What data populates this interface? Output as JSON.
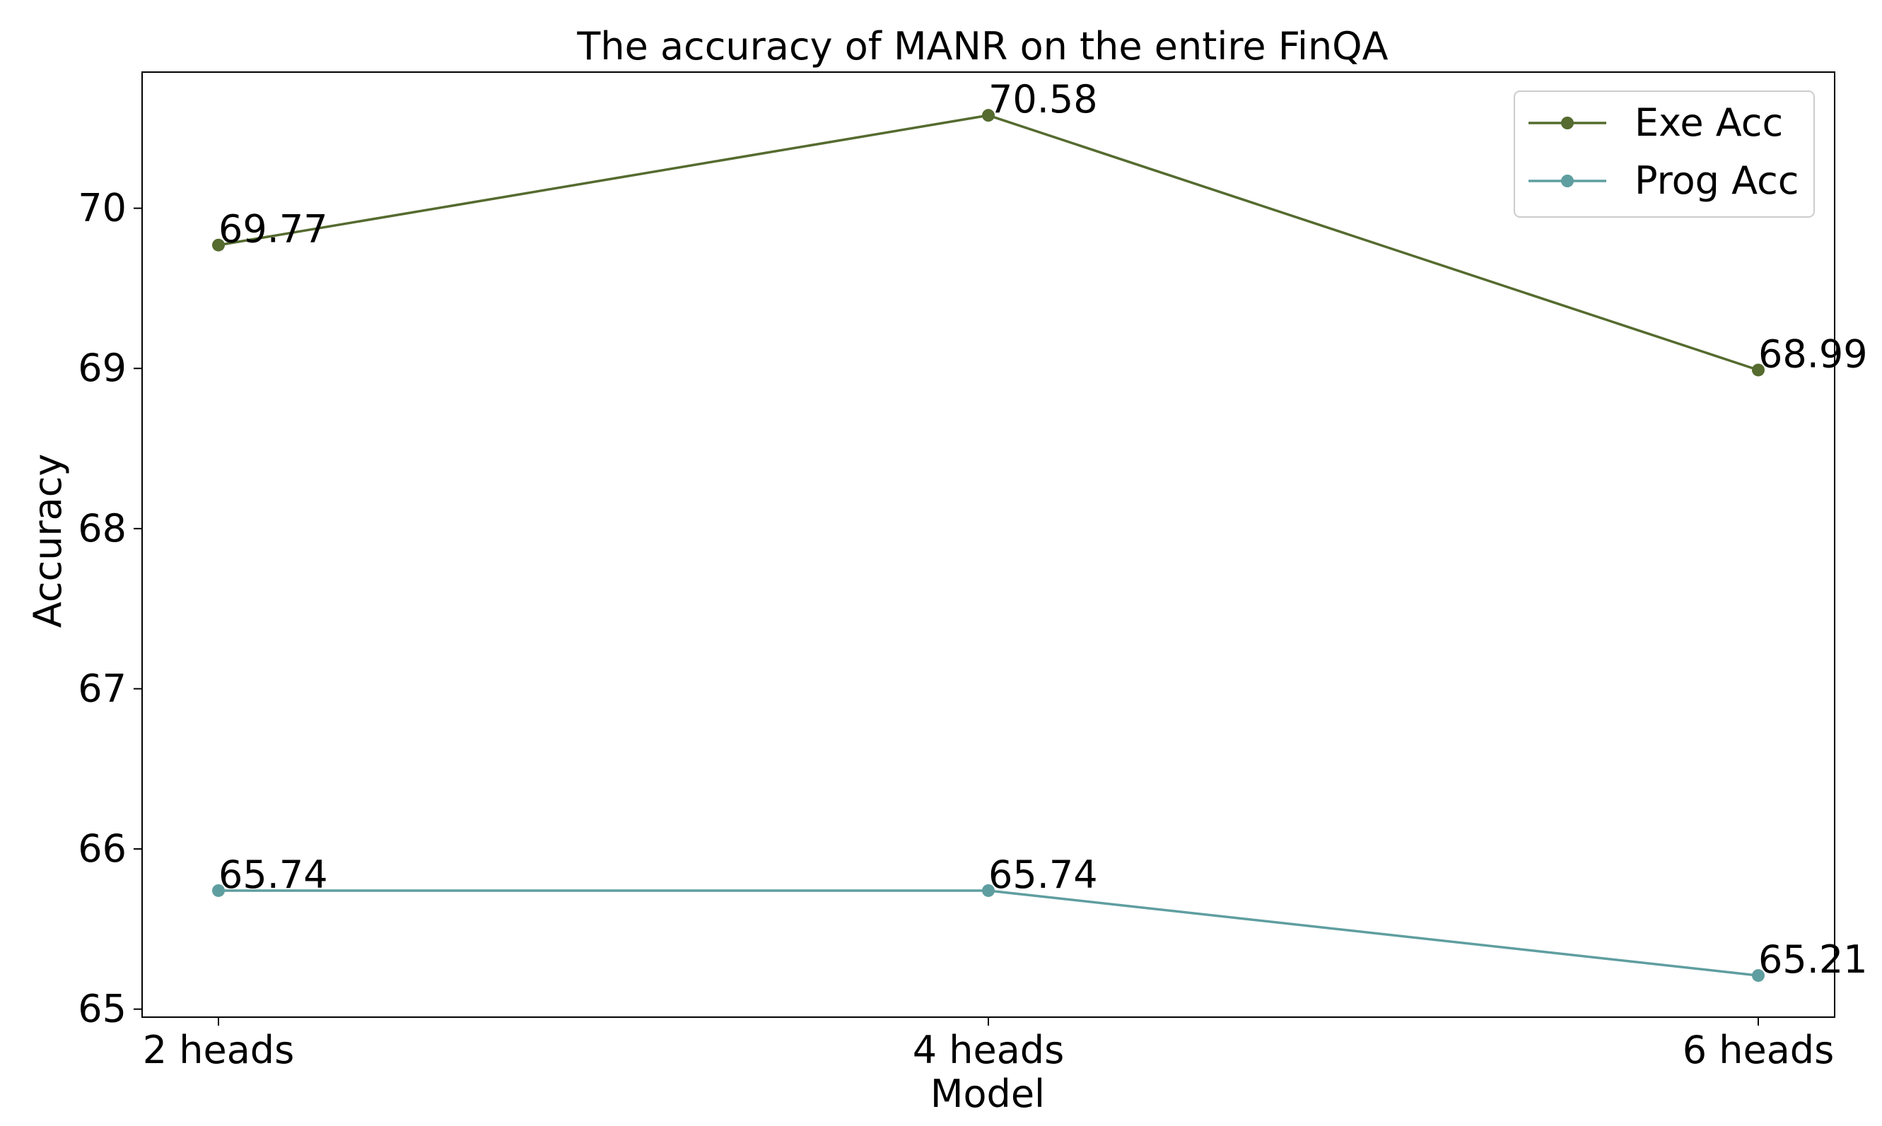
{
  "chart_data": {
    "type": "line",
    "title": "The accuracy of MANR on the entire FinQA",
    "xlabel": "Model",
    "ylabel": "Accuracy",
    "categories": [
      "2 heads",
      "4 heads",
      "6 heads"
    ],
    "ylim": [
      64.95,
      70.85
    ],
    "yticks": [
      "65",
      "66",
      "67",
      "68",
      "69",
      "70"
    ],
    "grid": false,
    "legend_position": "top-right",
    "series": [
      {
        "name": "Exe Acc",
        "color": "#556b2f",
        "values": [
          69.77,
          70.58,
          68.99
        ],
        "labels": [
          "69.77",
          "70.58",
          "68.99"
        ]
      },
      {
        "name": "Prog Acc",
        "color": "#5f9ea0",
        "values": [
          65.74,
          65.74,
          65.21
        ],
        "labels": [
          "65.74",
          "65.74",
          "65.21"
        ]
      }
    ]
  }
}
